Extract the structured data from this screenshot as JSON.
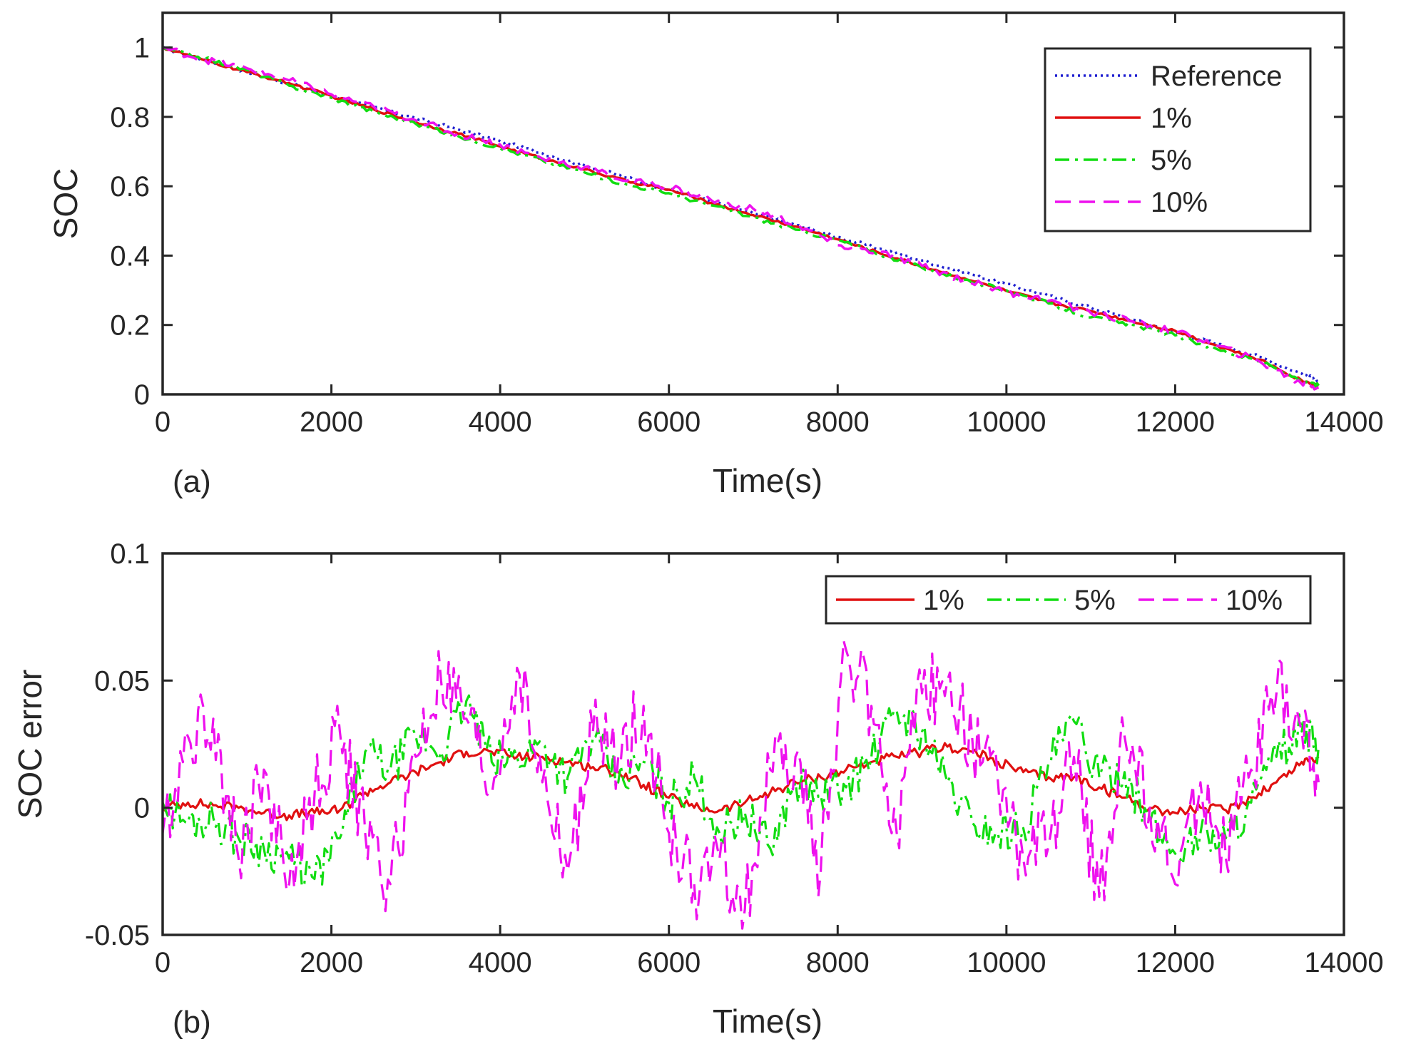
{
  "chart_data": [
    {
      "type": "line",
      "panel_label": "(a)",
      "xlabel": "Time(s)",
      "ylabel": "SOC",
      "xlim": [
        0,
        14000
      ],
      "ylim": [
        0,
        1.1
      ],
      "xticks": [
        0,
        2000,
        4000,
        6000,
        8000,
        10000,
        12000,
        14000
      ],
      "yticks": [
        0,
        0.2,
        0.4,
        0.6,
        0.8,
        1
      ],
      "xtick_labels": [
        "0",
        "2000",
        "4000",
        "6000",
        "8000",
        "10000",
        "12000",
        "14000"
      ],
      "ytick_labels": [
        "0",
        "0.2",
        "0.4",
        "0.6",
        "0.8",
        "1"
      ],
      "grid": false,
      "legend_position": "top-right",
      "x": [
        0,
        500,
        1000,
        1500,
        2000,
        2500,
        3000,
        3500,
        4000,
        4500,
        5000,
        5500,
        6000,
        6500,
        7000,
        7500,
        8000,
        8500,
        9000,
        9500,
        10000,
        10500,
        11000,
        11500,
        12000,
        12500,
        13000,
        13500,
        13700
      ],
      "series": [
        {
          "name": "Reference",
          "color": "#1f1fd0",
          "style": "dotted",
          "values": [
            1.0,
            0.965,
            0.93,
            0.895,
            0.86,
            0.828,
            0.796,
            0.764,
            0.73,
            0.695,
            0.66,
            0.625,
            0.59,
            0.556,
            0.522,
            0.488,
            0.454,
            0.42,
            0.386,
            0.352,
            0.318,
            0.284,
            0.25,
            0.215,
            0.18,
            0.145,
            0.108,
            0.06,
            0.04
          ]
        },
        {
          "name": "1%",
          "color": "#e01010",
          "style": "solid",
          "values": [
            1.0,
            0.963,
            0.929,
            0.897,
            0.86,
            0.822,
            0.785,
            0.752,
            0.715,
            0.68,
            0.648,
            0.615,
            0.59,
            0.552,
            0.517,
            0.484,
            0.447,
            0.407,
            0.37,
            0.335,
            0.298,
            0.265,
            0.24,
            0.21,
            0.183,
            0.14,
            0.1,
            0.04,
            0.025
          ]
        },
        {
          "name": "5%",
          "color": "#11dd11",
          "style": "dashdot",
          "values": [
            1.0,
            0.968,
            0.935,
            0.89,
            0.855,
            0.815,
            0.78,
            0.745,
            0.71,
            0.675,
            0.64,
            0.605,
            0.58,
            0.545,
            0.51,
            0.475,
            0.445,
            0.405,
            0.365,
            0.33,
            0.3,
            0.262,
            0.222,
            0.2,
            0.17,
            0.13,
            0.095,
            0.04,
            0.025
          ]
        },
        {
          "name": "10%",
          "color": "#ee11ee",
          "style": "dashed",
          "values": [
            1.0,
            0.965,
            0.94,
            0.905,
            0.865,
            0.83,
            0.79,
            0.75,
            0.72,
            0.68,
            0.655,
            0.615,
            0.6,
            0.56,
            0.535,
            0.49,
            0.43,
            0.41,
            0.37,
            0.33,
            0.295,
            0.27,
            0.235,
            0.21,
            0.18,
            0.14,
            0.095,
            0.03,
            0.02
          ]
        }
      ]
    },
    {
      "type": "line",
      "panel_label": "(b)",
      "xlabel": "Time(s)",
      "ylabel": "SOC error",
      "xlim": [
        0,
        14000
      ],
      "ylim": [
        -0.05,
        0.1
      ],
      "xticks": [
        0,
        2000,
        4000,
        6000,
        8000,
        10000,
        12000,
        14000
      ],
      "yticks": [
        -0.05,
        0,
        0.05,
        0.1
      ],
      "xtick_labels": [
        "0",
        "2000",
        "4000",
        "6000",
        "8000",
        "10000",
        "12000",
        "14000"
      ],
      "ytick_labels": [
        "-0.05",
        "0",
        "0.05",
        "0.1"
      ],
      "grid": false,
      "legend_position": "top-right",
      "x": [
        0,
        300,
        600,
        900,
        1200,
        1500,
        1800,
        2100,
        2400,
        2700,
        3000,
        3300,
        3600,
        3900,
        4200,
        4500,
        4800,
        5100,
        5400,
        5700,
        6000,
        6300,
        6600,
        6900,
        7200,
        7500,
        7800,
        8100,
        8400,
        8700,
        9000,
        9300,
        9600,
        9900,
        10200,
        10500,
        10800,
        11100,
        11400,
        11700,
        12000,
        12300,
        12600,
        12900,
        13200,
        13500,
        13700
      ],
      "series": [
        {
          "name": "1%",
          "color": "#e01010",
          "style": "solid",
          "values": [
            0.0,
            0.002,
            0.001,
            0.0,
            -0.002,
            -0.003,
            -0.002,
            -0.001,
            0.006,
            0.01,
            0.014,
            0.018,
            0.022,
            0.022,
            0.02,
            0.02,
            0.018,
            0.016,
            0.014,
            0.009,
            0.004,
            0.0,
            -0.001,
            0.002,
            0.006,
            0.01,
            0.012,
            0.015,
            0.018,
            0.02,
            0.022,
            0.024,
            0.022,
            0.018,
            0.014,
            0.012,
            0.012,
            0.008,
            0.004,
            0.0,
            -0.002,
            0.0,
            -0.001,
            0.004,
            0.01,
            0.018,
            0.02
          ]
        },
        {
          "name": "5%",
          "color": "#11dd11",
          "style": "dashdot",
          "values": [
            0.002,
            -0.006,
            -0.004,
            -0.012,
            -0.016,
            -0.02,
            -0.028,
            -0.012,
            0.022,
            0.015,
            0.028,
            0.022,
            0.042,
            0.018,
            0.02,
            0.025,
            0.012,
            0.028,
            0.01,
            0.018,
            0.002,
            0.012,
            -0.01,
            -0.002,
            -0.016,
            0.01,
            0.005,
            0.008,
            0.02,
            0.038,
            0.03,
            0.01,
            -0.006,
            -0.01,
            -0.008,
            0.018,
            0.034,
            0.012,
            0.014,
            -0.006,
            -0.018,
            -0.01,
            -0.012,
            0.002,
            0.02,
            0.03,
            0.024
          ]
        },
        {
          "name": "10%",
          "color": "#ee11ee",
          "style": "dashed",
          "values": [
            -0.01,
            0.028,
            0.035,
            -0.02,
            0.015,
            -0.03,
            0.005,
            0.03,
            -0.01,
            -0.03,
            0.02,
            0.05,
            0.035,
            0.005,
            0.055,
            0.01,
            -0.025,
            0.03,
            0.02,
            0.04,
            -0.01,
            -0.03,
            -0.02,
            -0.04,
            0.015,
            0.02,
            -0.025,
            0.062,
            0.04,
            -0.01,
            0.045,
            0.05,
            0.025,
            0.01,
            -0.02,
            -0.015,
            0.02,
            -0.035,
            0.028,
            0.0,
            -0.03,
            0.01,
            -0.02,
            0.015,
            0.045,
            0.03,
            0.01
          ]
        }
      ]
    }
  ]
}
